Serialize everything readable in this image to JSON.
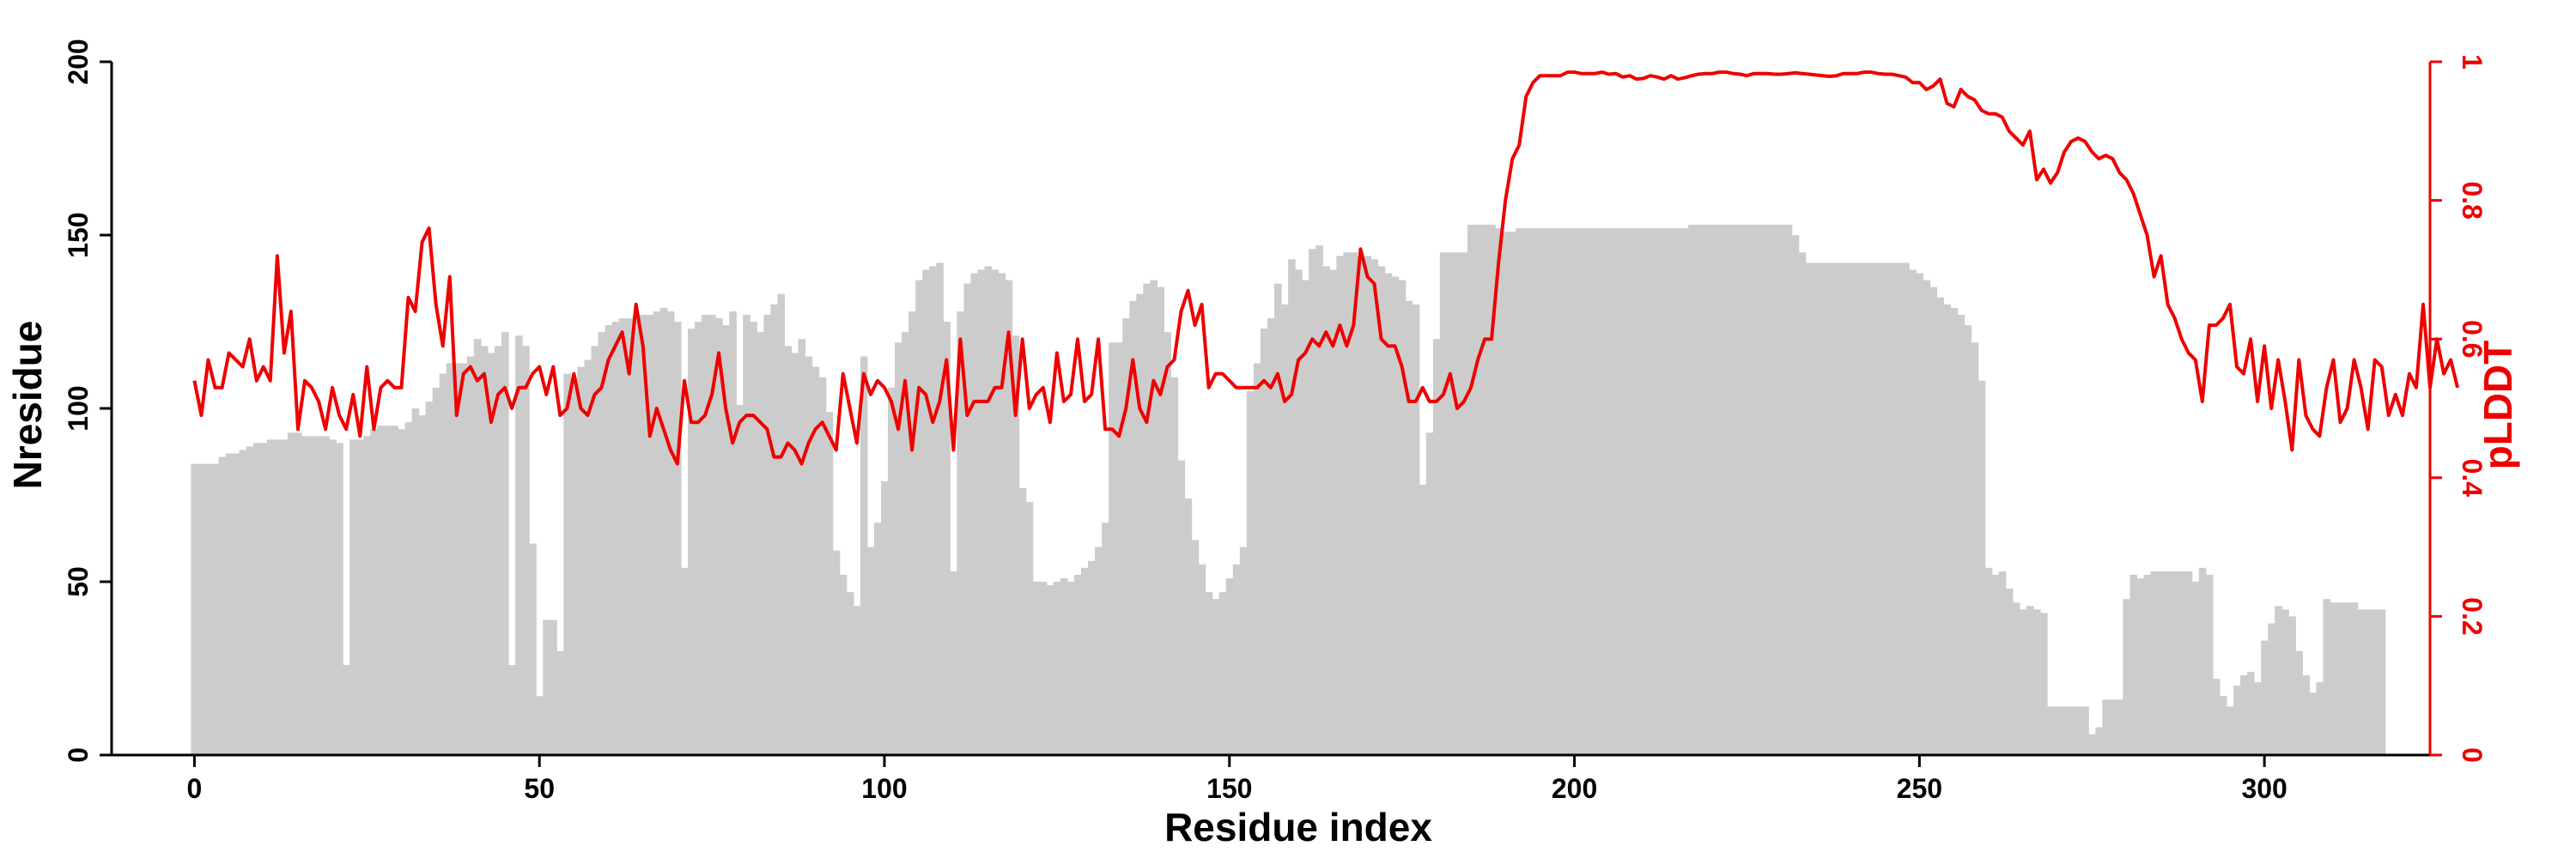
{
  "chart_data": {
    "type": "bar+line",
    "title": "",
    "xlabel": "Residue index",
    "ylabel_left": "Nresidue",
    "ylabel_right": "pLDDT",
    "xlim": [
      -12,
      324
    ],
    "ylim_left": [
      0,
      200
    ],
    "ylim_right": [
      0,
      1
    ],
    "xticks": [
      0,
      50,
      100,
      150,
      200,
      250,
      300
    ],
    "yticks_left": [
      0,
      50,
      100,
      150,
      200
    ],
    "yticks_right": [
      0,
      0.2,
      0.4,
      0.6,
      0.8,
      1
    ],
    "grid": false,
    "legend": "none",
    "colors": {
      "bars": "#cccccc",
      "line": "#ee0000",
      "axis_left": "#000000",
      "axis_right": "#ee0000"
    },
    "series": [
      {
        "name": "Nresidue",
        "kind": "bar",
        "x_start": 0,
        "values": [
          84,
          84,
          84,
          84,
          86,
          87,
          87,
          88,
          89,
          90,
          90,
          91,
          91,
          91,
          93,
          93,
          92,
          92,
          92,
          92,
          91,
          90,
          26,
          91,
          91,
          92,
          94,
          95,
          95,
          95,
          94,
          96,
          100,
          98,
          102,
          106,
          110,
          113,
          113,
          113,
          115,
          120,
          118,
          116,
          118,
          122,
          26,
          121,
          118,
          61,
          17,
          39,
          39,
          30,
          110,
          109,
          112,
          114,
          118,
          122,
          124,
          125,
          126,
          126,
          127,
          127,
          127,
          128,
          129,
          128,
          125,
          54,
          123,
          125,
          127,
          127,
          126,
          124,
          128,
          101,
          127,
          125,
          122,
          127,
          130,
          133,
          118,
          116,
          120,
          115,
          112,
          109,
          99,
          59,
          52,
          47,
          43,
          115,
          60,
          67,
          79,
          106,
          119,
          122,
          128,
          137,
          140,
          141,
          142,
          125,
          53,
          128,
          136,
          139,
          140,
          141,
          140,
          139,
          137,
          121,
          77,
          73,
          50,
          50,
          49,
          50,
          51,
          50,
          52,
          54,
          56,
          60,
          67,
          119,
          119,
          126,
          131,
          133,
          136,
          137,
          135,
          122,
          109,
          85,
          74,
          62,
          55,
          47,
          45,
          47,
          51,
          55,
          60,
          105,
          113,
          123,
          126,
          136,
          130,
          143,
          140,
          137,
          146,
          147,
          141,
          140,
          144,
          145,
          145,
          144,
          144,
          143,
          141,
          139,
          138,
          137,
          131,
          130,
          78,
          93,
          120,
          145,
          145,
          145,
          145,
          153,
          153,
          153,
          153,
          152,
          151,
          151,
          152,
          152,
          152,
          152,
          152,
          152,
          152,
          152,
          152,
          152,
          152,
          152,
          152,
          152,
          152,
          152,
          152,
          152,
          152,
          152,
          152,
          152,
          152,
          152,
          152,
          153,
          153,
          153,
          153,
          153,
          153,
          153,
          153,
          153,
          153,
          153,
          153,
          153,
          153,
          153,
          150,
          145,
          142,
          142,
          142,
          142,
          142,
          142,
          142,
          142,
          142,
          142,
          142,
          142,
          142,
          142,
          142,
          140,
          139,
          137,
          135,
          132,
          130,
          129,
          127,
          124,
          119,
          108,
          54,
          52,
          53,
          48,
          44,
          42,
          43,
          42,
          41,
          14,
          14,
          14,
          14,
          14,
          14,
          6,
          8,
          16,
          16,
          16,
          45,
          52,
          51,
          52,
          53,
          53,
          53,
          53,
          53,
          53,
          50,
          54,
          52,
          22,
          17,
          14,
          20,
          23,
          24,
          21,
          33,
          38,
          43,
          42,
          40,
          30,
          23,
          18,
          21,
          45,
          44,
          44,
          44,
          44,
          42,
          42,
          42,
          42
        ]
      },
      {
        "name": "pLDDT",
        "kind": "line",
        "x_start": 0,
        "values": [
          0.54,
          0.49,
          0.57,
          0.53,
          0.53,
          0.58,
          0.57,
          0.56,
          0.6,
          0.54,
          0.56,
          0.54,
          0.72,
          0.58,
          0.64,
          0.47,
          0.54,
          0.53,
          0.51,
          0.47,
          0.53,
          0.49,
          0.47,
          0.52,
          0.46,
          0.56,
          0.47,
          0.53,
          0.54,
          0.53,
          0.53,
          0.66,
          0.64,
          0.74,
          0.76,
          0.65,
          0.59,
          0.69,
          0.49,
          0.55,
          0.56,
          0.54,
          0.55,
          0.48,
          0.52,
          0.53,
          0.5,
          0.53,
          0.53,
          0.55,
          0.56,
          0.52,
          0.56,
          0.49,
          0.5,
          0.55,
          0.5,
          0.49,
          0.52,
          0.53,
          0.57,
          0.59,
          0.61,
          0.55,
          0.65,
          0.59,
          0.46,
          0.5,
          0.47,
          0.44,
          0.42,
          0.54,
          0.48,
          0.48,
          0.49,
          0.52,
          0.58,
          0.5,
          0.45,
          0.48,
          0.49,
          0.49,
          0.48,
          0.47,
          0.43,
          0.43,
          0.45,
          0.44,
          0.42,
          0.45,
          0.47,
          0.48,
          0.46,
          0.44,
          0.55,
          0.5,
          0.45,
          0.55,
          0.52,
          0.54,
          0.53,
          0.51,
          0.47,
          0.54,
          0.44,
          0.53,
          0.52,
          0.48,
          0.51,
          0.57,
          0.44,
          0.6,
          0.49,
          0.51,
          0.51,
          0.51,
          0.53,
          0.53,
          0.61,
          0.49,
          0.6,
          0.5,
          0.52,
          0.53,
          0.48,
          0.58,
          0.51,
          0.52,
          0.6,
          0.51,
          0.52,
          0.6,
          0.47,
          0.47,
          0.46,
          0.5,
          0.57,
          0.5,
          0.48,
          0.54,
          0.52,
          0.56,
          0.57,
          0.64,
          0.67,
          0.62,
          0.65,
          0.53,
          0.55,
          0.55,
          0.54,
          0.53,
          0.53,
          0.53,
          0.53,
          0.54,
          0.53,
          0.55,
          0.51,
          0.52,
          0.57,
          0.58,
          0.6,
          0.59,
          0.61,
          0.59,
          0.62,
          0.59,
          0.62,
          0.73,
          0.69,
          0.68,
          0.6,
          0.59,
          0.59,
          0.56,
          0.51,
          0.51,
          0.53,
          0.51,
          0.51,
          0.52,
          0.55,
          0.5,
          0.51,
          0.53,
          0.57,
          0.6,
          0.6,
          0.71,
          0.8,
          0.86,
          0.88,
          0.95,
          0.97,
          0.98,
          0.98,
          0.98,
          0.98,
          0.985,
          0.985,
          0.983,
          0.983,
          0.983,
          0.985,
          0.982,
          0.983,
          0.978,
          0.98,
          0.975,
          0.976,
          0.98,
          0.978,
          0.975,
          0.98,
          0.975,
          0.977,
          0.98,
          0.982,
          0.983,
          0.983,
          0.985,
          0.985,
          0.983,
          0.982,
          0.98,
          0.983,
          0.983,
          0.983,
          0.982,
          0.982,
          0.983,
          0.984,
          0.983,
          0.982,
          0.981,
          0.98,
          0.979,
          0.98,
          0.983,
          0.983,
          0.983,
          0.985,
          0.985,
          0.983,
          0.982,
          0.982,
          0.98,
          0.978,
          0.97,
          0.97,
          0.96,
          0.965,
          0.975,
          0.94,
          0.935,
          0.96,
          0.95,
          0.945,
          0.93,
          0.925,
          0.925,
          0.92,
          0.9,
          0.89,
          0.88,
          0.9,
          0.83,
          0.845,
          0.825,
          0.84,
          0.87,
          0.885,
          0.89,
          0.885,
          0.87,
          0.86,
          0.865,
          0.86,
          0.84,
          0.83,
          0.81,
          0.78,
          0.75,
          0.69,
          0.72,
          0.65,
          0.63,
          0.6,
          0.58,
          0.57,
          0.51,
          0.62,
          0.62,
          0.63,
          0.65,
          0.56,
          0.55,
          0.6,
          0.51,
          0.59,
          0.5,
          0.57,
          0.51,
          0.44,
          0.57,
          0.49,
          0.47,
          0.46,
          0.53,
          0.57,
          0.48,
          0.5,
          0.57,
          0.53,
          0.47,
          0.57,
          0.56,
          0.49,
          0.52,
          0.49,
          0.55,
          0.53,
          0.65,
          0.53,
          0.6,
          0.55,
          0.57,
          0.53
        ]
      }
    ]
  }
}
